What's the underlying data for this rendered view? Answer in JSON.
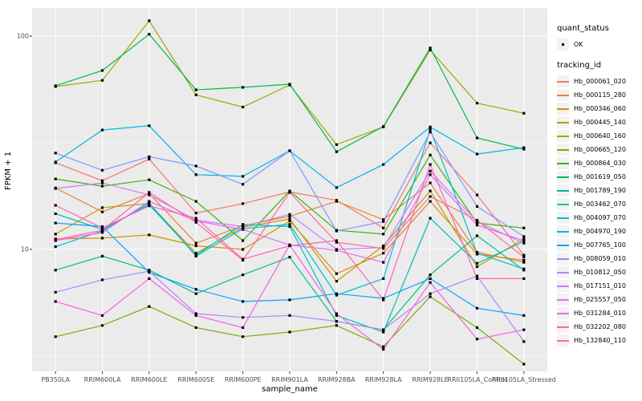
{
  "axes": {
    "y_title": "FPKM + 1",
    "x_title": "sample_name",
    "y_tick_labels": [
      "100",
      "10"
    ]
  },
  "legend": {
    "quant_status_title": "quant_status",
    "quant_status_items": [
      {
        "label": "OK",
        "marker": "black-point"
      }
    ],
    "tracking_id_title": "tracking_id"
  },
  "colors": {
    "panel_bg": "#EBEBEB",
    "gridline": "#FFFFFF",
    "point": "#000000",
    "legend_key_bg": "#F2F2F2",
    "tick_text": "#4D4D4D"
  },
  "chart_data": {
    "type": "line",
    "title": "",
    "xlabel": "sample_name",
    "ylabel": "FPKM + 1",
    "y_scale": "log10",
    "ylim": [
      2.68,
      135
    ],
    "y_major_gridlines": [
      10,
      100
    ],
    "y_minor_gridlines": [
      3.1623,
      31.623
    ],
    "y_tick_values": [
      10,
      100
    ],
    "grid": "on",
    "legend_position": "right",
    "quant_status": "OK",
    "categories": [
      "PB350LA",
      "RRIM600LA",
      "RRIM600LE",
      "RRIM600SE",
      "RRIM600PE",
      "RRIM901LA",
      "RRIM928BA",
      "RRIM928LA",
      "RRIM928LE",
      "RRII105LA_Control",
      "RRII105LA_Stressed"
    ],
    "series": [
      {
        "name": "Hb_000061_020",
        "color": "#F8766D",
        "values": [
          25.5,
          21.0,
          26.5,
          14.8,
          16.4,
          18.6,
          17.0,
          12.6,
          31.6,
          18.0,
          9.4
        ]
      },
      {
        "name": "Hb_000115_280",
        "color": "#EA8331",
        "values": [
          19.4,
          15.0,
          18.3,
          10.7,
          12.9,
          14.3,
          16.8,
          13.8,
          20.5,
          9.7,
          8.7
        ]
      },
      {
        "name": "Hb_000346_060",
        "color": "#D89000",
        "values": [
          11.2,
          11.3,
          11.7,
          10.4,
          10.0,
          13.6,
          7.7,
          9.6,
          16.8,
          9.5,
          8.9
        ]
      },
      {
        "name": "Hb_000445_140",
        "color": "#C09B00",
        "values": [
          11.8,
          15.7,
          16.4,
          9.6,
          12.7,
          13.9,
          7.1,
          10.4,
          18.8,
          8.3,
          11.2
        ]
      },
      {
        "name": "Hb_000640_160",
        "color": "#A3A500",
        "values": [
          58.0,
          62.0,
          118.0,
          53.0,
          46.5,
          59.0,
          31.0,
          37.5,
          86.0,
          48.5,
          43.5
        ]
      },
      {
        "name": "Hb_000665_120",
        "color": "#7CAE00",
        "values": [
          3.9,
          4.4,
          5.4,
          4.3,
          3.9,
          4.1,
          4.4,
          3.5,
          6.0,
          4.3,
          2.9
        ]
      },
      {
        "name": "Hb_000864_030",
        "color": "#39B600",
        "values": [
          21.4,
          19.8,
          21.2,
          16.8,
          11.0,
          18.8,
          12.3,
          11.8,
          27.7,
          13.3,
          12.6
        ]
      },
      {
        "name": "Hb_001619_050",
        "color": "#00BB4E",
        "values": [
          58.5,
          69.0,
          102.0,
          56.0,
          57.5,
          59.5,
          28.7,
          37.7,
          88.0,
          33.3,
          29.5
        ]
      },
      {
        "name": "Hb_001789_190",
        "color": "#00C087",
        "values": [
          8.0,
          9.3,
          8.0,
          6.2,
          7.6,
          9.2,
          4.6,
          4.2,
          7.6,
          11.6,
          8.0
        ]
      },
      {
        "name": "Hb_003462_070",
        "color": "#00C0B2",
        "values": [
          14.7,
          12.4,
          16.2,
          9.4,
          13.1,
          12.8,
          4.9,
          4.1,
          14.0,
          8.6,
          10.9
        ]
      },
      {
        "name": "Hb_004097_070",
        "color": "#00BDD2",
        "values": [
          10.3,
          12.2,
          16.5,
          9.3,
          12.5,
          13.1,
          6.1,
          7.3,
          36.5,
          9.6,
          8.1
        ]
      },
      {
        "name": "Hb_004970_190",
        "color": "#00B5ED",
        "values": [
          25.7,
          36.3,
          38.0,
          22.4,
          22.0,
          29.0,
          19.5,
          25.0,
          37.5,
          28.0,
          30.0
        ]
      },
      {
        "name": "Hb_007765_100",
        "color": "#00A7FF",
        "values": [
          13.3,
          12.8,
          7.8,
          6.5,
          5.7,
          5.8,
          6.2,
          5.9,
          7.3,
          5.3,
          4.9
        ]
      },
      {
        "name": "Hb_008059_010",
        "color": "#7F96FF",
        "values": [
          28.3,
          23.5,
          27.2,
          24.6,
          20.2,
          29.0,
          12.2,
          13.5,
          35.5,
          15.9,
          11.5
        ]
      },
      {
        "name": "Hb_010812_050",
        "color": "#AC88FF",
        "values": [
          6.3,
          7.2,
          7.9,
          5.0,
          4.8,
          4.9,
          4.6,
          4.2,
          6.2,
          7.5,
          3.7
        ]
      },
      {
        "name": "Hb_017151_010",
        "color": "#CF78FF",
        "values": [
          19.3,
          20.5,
          18.0,
          13.7,
          12.8,
          14.6,
          10.0,
          10.2,
          23.3,
          13.5,
          10.7
        ]
      },
      {
        "name": "Hb_025557_050",
        "color": "#E76BF3",
        "values": [
          11.0,
          12.0,
          16.8,
          13.6,
          12.4,
          10.5,
          9.9,
          8.7,
          22.4,
          13.0,
          11.0
        ]
      },
      {
        "name": "Hb_031284_010",
        "color": "#F763DF",
        "values": [
          5.7,
          4.9,
          7.3,
          4.9,
          4.3,
          10.5,
          5.0,
          3.4,
          7.0,
          3.8,
          4.2
        ]
      },
      {
        "name": "Hb_032202_080",
        "color": "#FF62BC",
        "values": [
          16.1,
          12.6,
          16.0,
          14.0,
          9.0,
          10.4,
          11.0,
          5.8,
          25.0,
          7.3,
          7.3
        ]
      },
      {
        "name": "Hb_132840_110",
        "color": "#FF6A98",
        "values": [
          11.1,
          12.3,
          18.5,
          13.4,
          8.9,
          18.5,
          10.8,
          10.1,
          17.7,
          13.7,
          9.2
        ]
      }
    ]
  }
}
